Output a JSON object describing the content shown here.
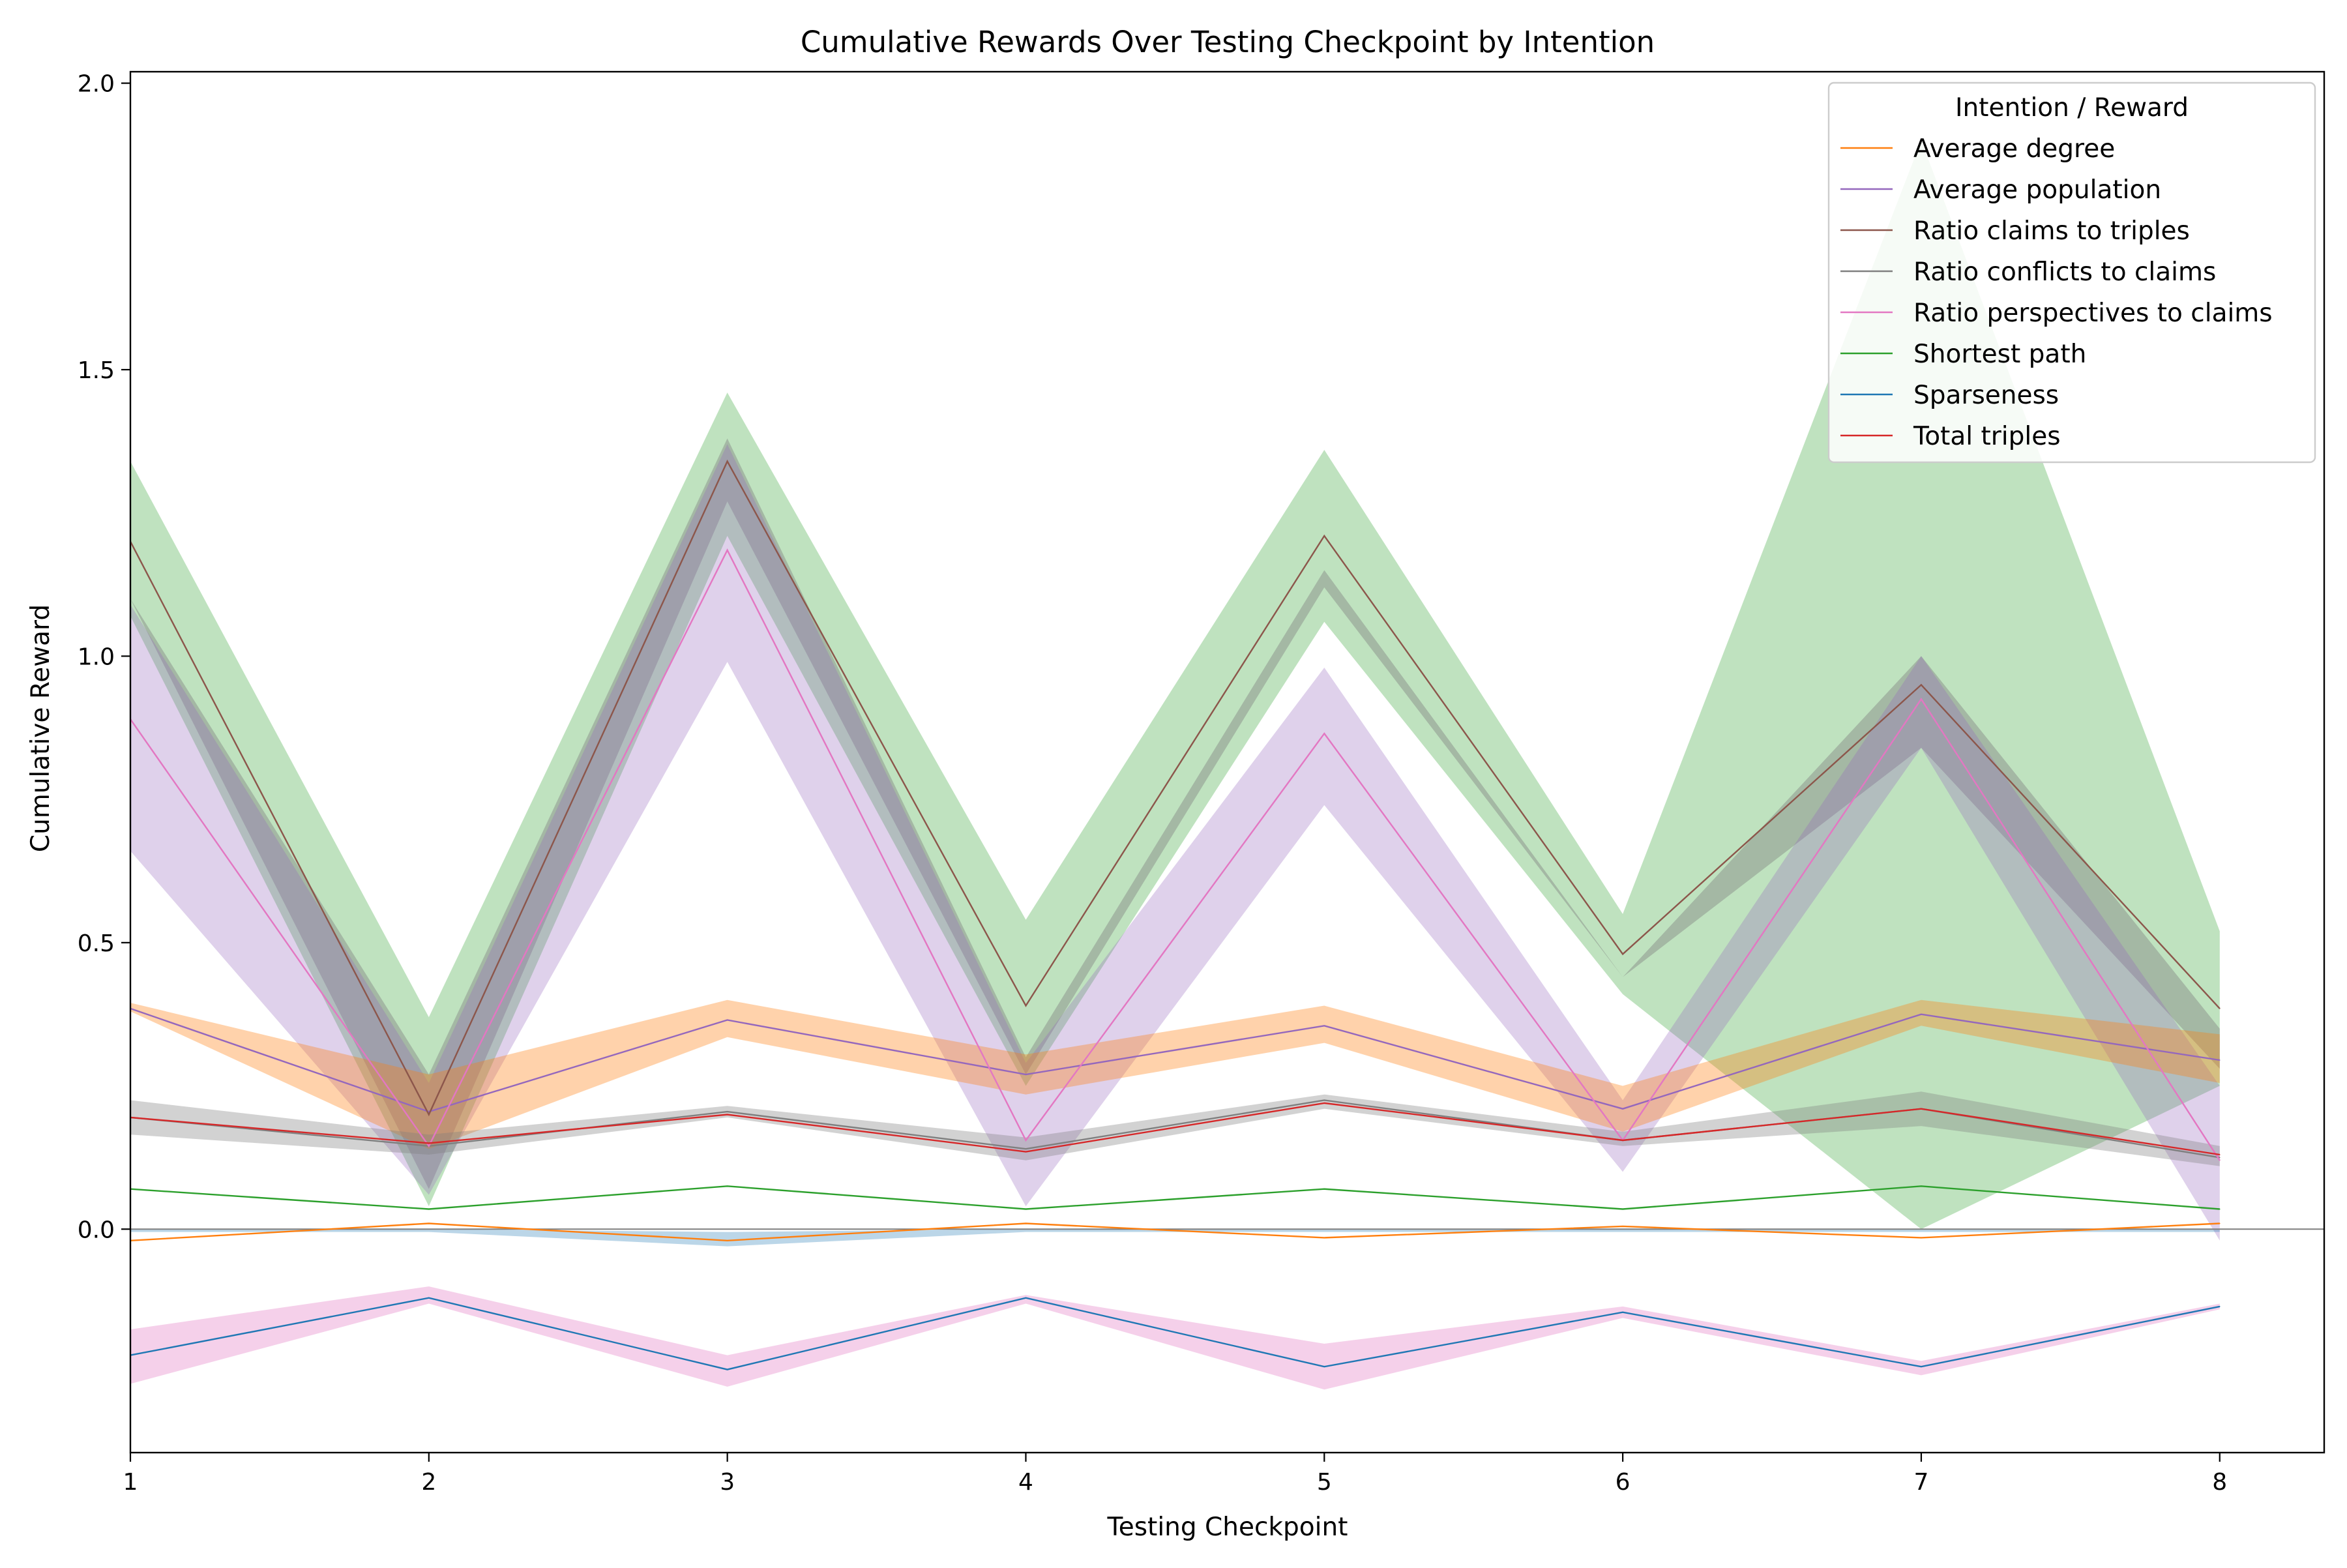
{
  "chart_data": {
    "type": "line",
    "title": "Cumulative Rewards Over Testing Checkpoint by Intention",
    "xlabel": "Testing Checkpoint",
    "ylabel": "Cumulative Reward",
    "xlim": [
      1,
      8.35
    ],
    "ylim": [
      -0.39,
      2.02
    ],
    "x_ticks": [
      1,
      2,
      3,
      4,
      5,
      6,
      7,
      8
    ],
    "y_ticks": [
      0.0,
      0.5,
      1.0,
      1.5,
      2.0
    ],
    "x_tick_labels": [
      "1",
      "2",
      "3",
      "4",
      "5",
      "6",
      "7",
      "8"
    ],
    "y_tick_labels": [
      "0.0",
      "0.5",
      "1.0",
      "1.5",
      "2.0"
    ],
    "grid": false,
    "legend": {
      "title": "Intention / Reward",
      "position": "top-right"
    },
    "x": [
      1,
      2,
      3,
      4,
      5,
      6,
      7,
      8
    ],
    "series": [
      {
        "name": "Average degree",
        "color": "#ff7f0e",
        "values": [
          -0.02,
          0.01,
          -0.02,
          0.01,
          -0.015,
          0.005,
          -0.015,
          0.01
        ],
        "band": [
          [
            -0.025,
            -0.015
          ],
          [
            0.005,
            0.015
          ],
          [
            -0.025,
            -0.015
          ],
          [
            0.005,
            0.015
          ],
          [
            -0.02,
            -0.01
          ],
          [
            0.0,
            0.01
          ],
          [
            -0.02,
            -0.01
          ],
          [
            0.005,
            0.015
          ]
        ]
      },
      {
        "name": "Average population",
        "color": "#9467bd",
        "values": [
          0.385,
          0.205,
          0.365,
          0.27,
          0.355,
          0.21,
          0.375,
          0.295
        ],
        "band": [
          [
            0.375,
            0.395
          ],
          [
            0.15,
            0.27
          ],
          [
            0.335,
            0.4
          ],
          [
            0.235,
            0.305
          ],
          [
            0.325,
            0.39
          ],
          [
            0.17,
            0.25
          ],
          [
            0.355,
            0.395
          ],
          [
            0.255,
            0.34
          ]
        ]
      },
      {
        "name": "Ratio claims to triples",
        "color": "#8c564b",
        "values": [
          1.2,
          0.2,
          1.34,
          0.39,
          1.21,
          0.48,
          0.95,
          0.385
        ],
        "band": [
          [
            1.07,
            1.34
          ],
          [
            0.04,
            0.37
          ],
          [
            1.21,
            1.46
          ],
          [
            0.25,
            0.54
          ],
          [
            1.06,
            1.36
          ],
          [
            0.41,
            0.55
          ],
          [
            0.0,
            1.9
          ],
          [
            0.25,
            0.52
          ]
        ]
      },
      {
        "name": "Ratio conflicts to claims",
        "color": "#7f7f7f",
        "values": [
          0.195,
          0.145,
          0.205,
          0.14,
          0.225,
          0.155,
          0.21,
          0.125
        ],
        "band": [
          [
            0.165,
            0.225
          ],
          [
            0.13,
            0.165
          ],
          [
            0.195,
            0.215
          ],
          [
            0.12,
            0.16
          ],
          [
            0.21,
            0.235
          ],
          [
            0.145,
            0.17
          ],
          [
            0.18,
            0.24
          ],
          [
            0.11,
            0.145
          ]
        ]
      },
      {
        "name": "Ratio perspectives to claims",
        "color": "#e377c2",
        "values": [
          0.89,
          0.145,
          1.185,
          0.155,
          0.865,
          0.155,
          0.925,
          0.12
        ],
        "band": [
          [
            0.66,
            1.09
          ],
          [
            0.06,
            0.255
          ],
          [
            0.99,
            1.37
          ],
          [
            0.04,
            0.29
          ],
          [
            0.74,
            0.98
          ],
          [
            0.1,
            0.225
          ],
          [
            0.84,
            1.0
          ],
          [
            -0.02,
            0.25
          ]
        ]
      },
      {
        "name": "Shortest path",
        "color": "#2ca02c",
        "values": [
          0.07,
          0.035,
          0.075,
          0.035,
          0.07,
          0.035,
          0.075,
          0.035
        ],
        "band": [
          [
            0.065,
            0.075
          ],
          [
            0.03,
            0.04
          ],
          [
            0.07,
            0.08
          ],
          [
            0.03,
            0.04
          ],
          [
            0.065,
            0.075
          ],
          [
            0.03,
            0.04
          ],
          [
            0.07,
            0.08
          ],
          [
            0.03,
            0.04
          ]
        ]
      },
      {
        "name": "Sparseness",
        "color": "#1f77b4",
        "values": [
          -0.22,
          -0.12,
          -0.245,
          -0.12,
          -0.24,
          -0.145,
          -0.24,
          -0.135
        ],
        "band": [
          [
            -0.22,
            -0.22
          ],
          [
            -0.12,
            -0.12
          ],
          [
            -0.245,
            -0.245
          ],
          [
            -0.12,
            -0.12
          ],
          [
            -0.24,
            -0.24
          ],
          [
            -0.145,
            -0.145
          ],
          [
            -0.24,
            -0.24
          ],
          [
            -0.135,
            -0.135
          ]
        ]
      },
      {
        "name": "Total triples",
        "color": "#d62728",
        "values": [
          0.195,
          0.15,
          0.2,
          0.135,
          0.22,
          0.155,
          0.21,
          0.13
        ],
        "band": [
          [
            0.19,
            0.2
          ],
          [
            0.145,
            0.155
          ],
          [
            0.195,
            0.205
          ],
          [
            0.13,
            0.14
          ],
          [
            0.215,
            0.225
          ],
          [
            0.15,
            0.16
          ],
          [
            0.205,
            0.215
          ],
          [
            0.125,
            0.135
          ]
        ]
      }
    ],
    "visual_bands": [
      {
        "fill": "#2ca02c",
        "opacity": 0.3,
        "band": [
          [
            1.07,
            1.34
          ],
          [
            0.04,
            0.37
          ],
          [
            1.21,
            1.46
          ],
          [
            0.25,
            0.54
          ],
          [
            1.06,
            1.36
          ],
          [
            0.41,
            0.55
          ],
          [
            0.0,
            1.9
          ],
          [
            0.25,
            0.52
          ]
        ]
      },
      {
        "fill": "#7f7f7f",
        "opacity": 0.42,
        "band": [
          [
            1.1,
            1.1
          ],
          [
            0.07,
            0.27
          ],
          [
            1.27,
            1.38
          ],
          [
            0.27,
            0.3
          ],
          [
            1.12,
            1.15
          ],
          [
            0.44,
            0.44
          ],
          [
            0.84,
            1.0
          ],
          [
            0.28,
            0.35
          ]
        ]
      },
      {
        "fill": "#9467bd",
        "opacity": 0.3,
        "band": [
          [
            0.66,
            1.09
          ],
          [
            0.06,
            0.255
          ],
          [
            0.99,
            1.37
          ],
          [
            0.04,
            0.29
          ],
          [
            0.74,
            0.98
          ],
          [
            0.1,
            0.225
          ],
          [
            0.84,
            1.0
          ],
          [
            -0.02,
            0.25
          ]
        ]
      },
      {
        "fill": "#ff7f0e",
        "opacity": 0.35,
        "band": [
          [
            0.38,
            0.395
          ],
          [
            0.14,
            0.27
          ],
          [
            0.335,
            0.4
          ],
          [
            0.235,
            0.305
          ],
          [
            0.325,
            0.39
          ],
          [
            0.17,
            0.25
          ],
          [
            0.355,
            0.4
          ],
          [
            0.255,
            0.34
          ]
        ]
      },
      {
        "fill": "#7f7f7f",
        "opacity": 0.35,
        "band": [
          [
            0.165,
            0.225
          ],
          [
            0.13,
            0.165
          ],
          [
            0.195,
            0.215
          ],
          [
            0.12,
            0.16
          ],
          [
            0.21,
            0.235
          ],
          [
            0.145,
            0.17
          ],
          [
            0.18,
            0.24
          ],
          [
            0.11,
            0.145
          ]
        ]
      },
      {
        "fill": "#1f77b4",
        "opacity": 0.3,
        "band": [
          [
            -0.005,
            0.0
          ],
          [
            -0.005,
            0.0
          ],
          [
            -0.03,
            -0.005
          ],
          [
            -0.005,
            0.0
          ],
          [
            -0.005,
            0.0
          ],
          [
            -0.005,
            0.0
          ],
          [
            -0.005,
            0.0
          ],
          [
            -0.005,
            0.0
          ]
        ]
      },
      {
        "fill": "#e377c2",
        "opacity": 0.35,
        "band": [
          [
            -0.27,
            -0.175
          ],
          [
            -0.13,
            -0.1
          ],
          [
            -0.275,
            -0.22
          ],
          [
            -0.13,
            -0.115
          ],
          [
            -0.28,
            -0.2
          ],
          [
            -0.155,
            -0.135
          ],
          [
            -0.255,
            -0.23
          ],
          [
            -0.14,
            -0.13
          ]
        ]
      }
    ],
    "zero_line_color": "#7f7f7f"
  }
}
